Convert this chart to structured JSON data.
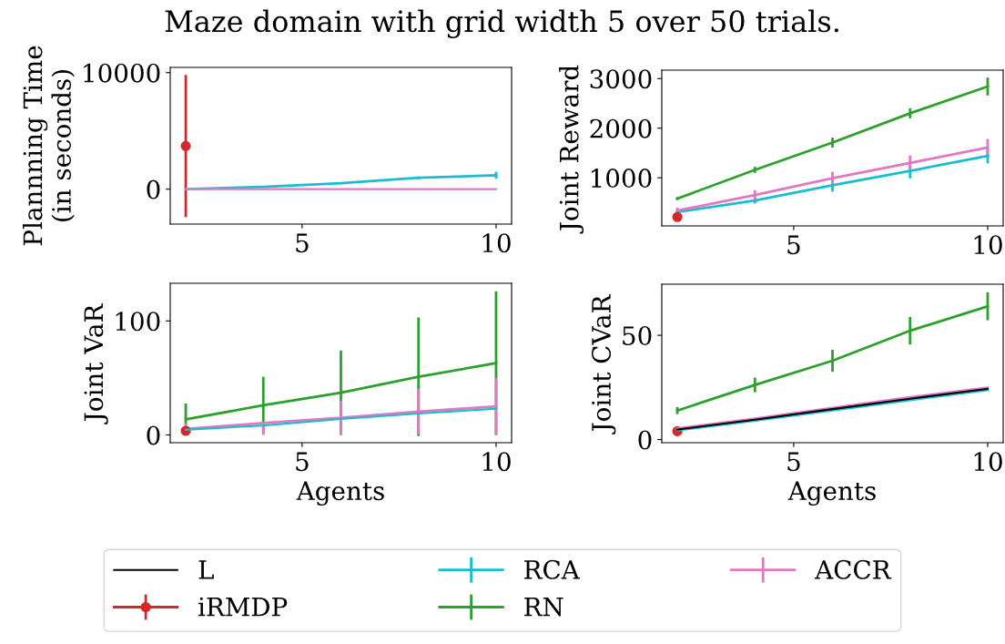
{
  "chart_data": [
    {
      "type": "line",
      "title": "Maze domain with grid width 5 over 50 trials.",
      "ylabel": "Plannning Time\n(in seconds)",
      "x": [
        2,
        4,
        6,
        8,
        10
      ],
      "xlim": [
        1.6,
        10.4
      ],
      "xticks": [
        5,
        10
      ],
      "ylim": [
        -3000,
        10450
      ],
      "yticks": [
        0,
        10000
      ],
      "grid": false,
      "series": [
        {
          "color": "#d62728",
          "marker": "circle",
          "values": [
            3700,
            null,
            null,
            null,
            null
          ],
          "errors": [
            6100,
            null,
            null,
            null,
            null
          ]
        },
        {
          "color": "#17becf",
          "values": [
            0,
            200,
            510,
            970,
            1190
          ],
          "errors": [
            null,
            null,
            60,
            120,
            300
          ]
        },
        {
          "color": "#e377c2",
          "values": [
            0,
            0,
            0,
            0,
            0
          ]
        }
      ]
    },
    {
      "type": "line",
      "ylabel": "Joint Reward",
      "x": [
        2,
        4,
        6,
        8,
        10
      ],
      "xlim": [
        1.6,
        10.4
      ],
      "xticks": [
        5,
        10
      ],
      "ylim": [
        30,
        3170
      ],
      "yticks": [
        1000,
        2000,
        3000
      ],
      "grid": false,
      "series": [
        {
          "color": "#d62728",
          "marker": "circle",
          "values": [
            210,
            null,
            null,
            null,
            null
          ]
        },
        {
          "color": "#17becf",
          "values": [
            310,
            540,
            850,
            1140,
            1440
          ],
          "errors": [
            40,
            60,
            130,
            150,
            150
          ]
        },
        {
          "color": "#2ca02c",
          "values": [
            580,
            1160,
            1710,
            2300,
            2840
          ],
          "errors": [
            30,
            60,
            100,
            100,
            180
          ]
        },
        {
          "color": "#e377c2",
          "values": [
            340,
            650,
            990,
            1300,
            1610
          ],
          "errors": [
            60,
            100,
            130,
            150,
            170
          ]
        }
      ]
    },
    {
      "type": "line",
      "ylabel": "Joint VaR",
      "xlabel": "Agents",
      "x": [
        2,
        4,
        6,
        8,
        10
      ],
      "xlim": [
        1.6,
        10.4
      ],
      "xticks": [
        5,
        10
      ],
      "ylim": [
        -6.8,
        133
      ],
      "yticks": [
        0,
        100
      ],
      "grid": false,
      "series": [
        {
          "color": "#d62728",
          "marker": "circle",
          "values": [
            3.6,
            null,
            null,
            null,
            null
          ]
        },
        {
          "color": "#17becf",
          "values": [
            4.5,
            8.3,
            14,
            18.7,
            23
          ]
        },
        {
          "color": "#2ca02c",
          "values": [
            13.6,
            26,
            37,
            51,
            63
          ],
          "errors": [
            14,
            25,
            37,
            52,
            63
          ]
        },
        {
          "color": "#e377c2",
          "values": [
            5.3,
            10.4,
            15,
            20.5,
            25
          ],
          "errors": [
            5,
            [
              0,
              11.6
            ],
            15,
            20,
            25
          ]
        }
      ]
    },
    {
      "type": "line",
      "ylabel": "Joint CVaR",
      "xlabel": "Agents",
      "x": [
        2,
        4,
        6,
        8,
        10
      ],
      "xlim": [
        1.6,
        10.4
      ],
      "xticks": [
        5,
        10
      ],
      "ylim": [
        -1.5,
        74.5
      ],
      "yticks": [
        0,
        50
      ],
      "grid": false,
      "legend": "bottom",
      "series": [
        {
          "name": "L",
          "color": "#000000",
          "values": [
            4.8,
            9.5,
            14.6,
            19.6,
            24.3
          ]
        },
        {
          "name": "iRMDP",
          "color": "#d62728",
          "marker": "circle",
          "values": [
            4,
            null,
            null,
            null,
            null
          ],
          "errors": [
            null,
            null,
            null,
            null,
            null
          ]
        },
        {
          "name": "RCA",
          "color": "#17becf",
          "values": [
            4.5,
            9.1,
            14.1,
            19,
            23.8
          ],
          "errors": [
            null,
            null,
            null,
            null,
            null
          ]
        },
        {
          "name": "RN",
          "color": "#2ca02c",
          "values": [
            13.9,
            26.2,
            37.8,
            52.2,
            63.9
          ],
          "errors": [
            1.7,
            3.5,
            5.3,
            6.6,
            6.7
          ]
        },
        {
          "name": "ACCR",
          "color": "#e377c2",
          "values": [
            5.3,
            10,
            15.2,
            20.3,
            24.9
          ],
          "errors": [
            null,
            null,
            null,
            null,
            null
          ]
        }
      ]
    }
  ]
}
